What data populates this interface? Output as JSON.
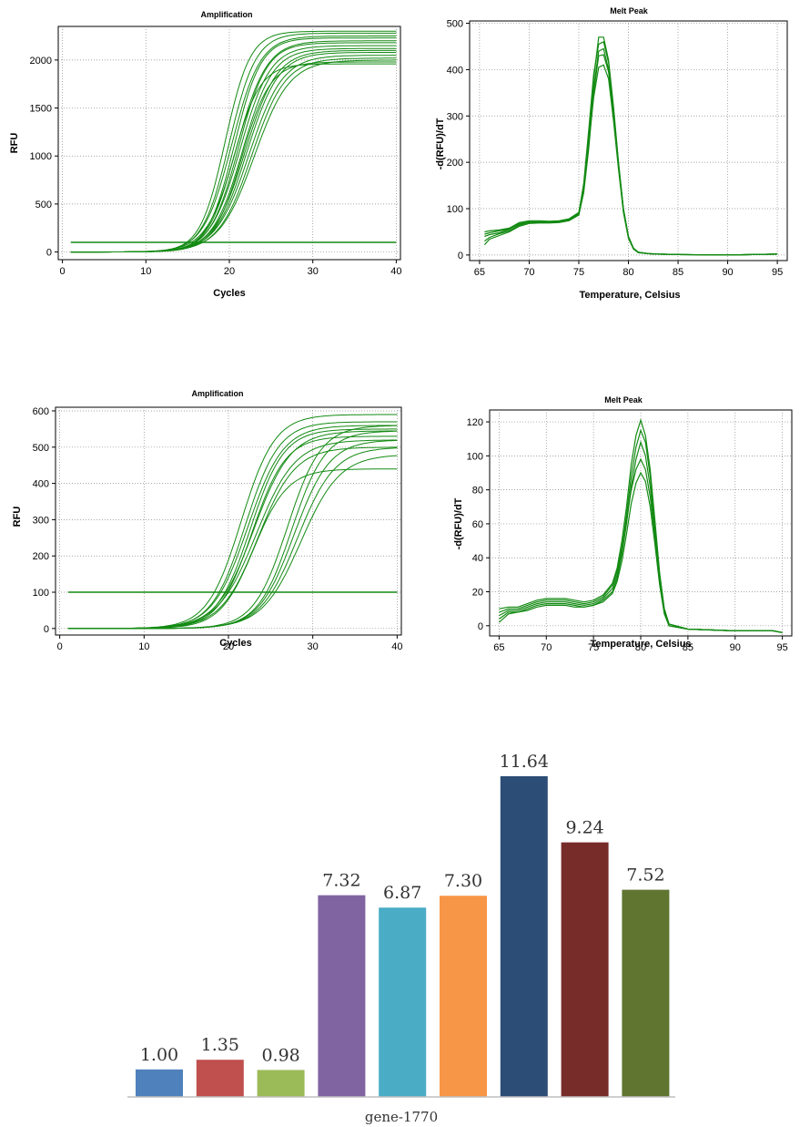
{
  "chart_data": [
    {
      "id": "amp1",
      "type": "line",
      "title": "Amplification",
      "xlabel": "Cycles",
      "ylabel": "RFU",
      "xlim": [
        -0.5,
        40.5
      ],
      "ylim": [
        -80,
        2350
      ],
      "xticks": [
        0,
        10,
        20,
        30,
        40
      ],
      "yticks": [
        0,
        500,
        1000,
        1500,
        2000
      ],
      "grid": true,
      "threshold": 100,
      "curve_model": "sigmoid",
      "x": [
        1,
        40
      ],
      "line_color": "#138a13",
      "series": [
        {
          "plateau": 1960,
          "midpoint": 20.5,
          "slope": 1.6
        },
        {
          "plateau": 2300,
          "midpoint": 19.5,
          "slope": 1.5
        },
        {
          "plateau": 2280,
          "midpoint": 20.0,
          "slope": 1.6
        },
        {
          "plateau": 2250,
          "midpoint": 20.3,
          "slope": 1.7
        },
        {
          "plateau": 2230,
          "midpoint": 20.6,
          "slope": 1.6
        },
        {
          "plateau": 2200,
          "midpoint": 20.9,
          "slope": 1.8
        },
        {
          "plateau": 2180,
          "midpoint": 21.1,
          "slope": 1.7
        },
        {
          "plateau": 2150,
          "midpoint": 21.3,
          "slope": 1.8
        },
        {
          "plateau": 2120,
          "midpoint": 21.6,
          "slope": 1.8
        },
        {
          "plateau": 2100,
          "midpoint": 21.9,
          "slope": 1.9
        },
        {
          "plateau": 2080,
          "midpoint": 22.1,
          "slope": 1.9
        },
        {
          "plateau": 2050,
          "midpoint": 22.4,
          "slope": 2.0
        },
        {
          "plateau": 2020,
          "midpoint": 22.7,
          "slope": 2.0
        },
        {
          "plateau": 2000,
          "midpoint": 23.0,
          "slope": 2.1
        },
        {
          "plateau": 1980,
          "midpoint": 21.5,
          "slope": 1.7
        }
      ]
    },
    {
      "id": "melt1",
      "type": "line",
      "title": "Melt Peak",
      "xlabel": "Temperature, Celsius",
      "ylabel": "-d(RFU)/dT",
      "xlim": [
        64,
        96
      ],
      "ylim": [
        -12,
        505
      ],
      "xticks": [
        65,
        70,
        75,
        80,
        85,
        90,
        95
      ],
      "yticks": [
        0,
        100,
        200,
        300,
        400,
        500
      ],
      "grid": true,
      "curve_model": "melt",
      "line_color": "#138a13",
      "x": [
        65.5,
        66,
        67,
        68,
        69,
        70,
        71,
        72,
        73,
        74,
        75,
        75.5,
        76,
        76.5,
        77,
        77.5,
        78,
        78.5,
        79,
        79.5,
        80,
        80.5,
        81,
        82,
        83,
        85,
        90,
        95
      ],
      "series": [
        {
          "values": [
            40,
            44,
            48,
            55,
            68,
            72,
            72,
            71,
            72,
            76,
            90,
            150,
            260,
            380,
            470,
            470,
            420,
            320,
            200,
            100,
            40,
            15,
            6,
            3,
            2,
            1,
            0,
            2
          ]
        },
        {
          "values": [
            30,
            38,
            46,
            52,
            64,
            70,
            70,
            70,
            71,
            75,
            88,
            140,
            250,
            360,
            440,
            445,
            400,
            300,
            190,
            95,
            38,
            14,
            6,
            3,
            2,
            1,
            0,
            2
          ]
        },
        {
          "values": [
            50,
            52,
            54,
            58,
            70,
            74,
            74,
            73,
            74,
            78,
            92,
            145,
            240,
            340,
            405,
            410,
            380,
            290,
            185,
            92,
            36,
            13,
            5,
            3,
            2,
            1,
            0,
            2
          ]
        },
        {
          "values": [
            22,
            34,
            42,
            50,
            62,
            68,
            69,
            69,
            70,
            74,
            86,
            135,
            230,
            350,
            430,
            432,
            395,
            305,
            195,
            98,
            39,
            14,
            6,
            3,
            2,
            1,
            0,
            2
          ]
        },
        {
          "values": [
            45,
            48,
            52,
            56,
            66,
            71,
            71,
            72,
            73,
            77,
            91,
            155,
            270,
            390,
            455,
            460,
            415,
            315,
            198,
            99,
            40,
            15,
            6,
            3,
            2,
            1,
            0,
            2
          ]
        }
      ]
    },
    {
      "id": "amp2",
      "type": "line",
      "title": "Amplification",
      "xlabel": "Cycles",
      "ylabel": "RFU",
      "xlim": [
        -0.5,
        40.5
      ],
      "ylim": [
        -18,
        610
      ],
      "xticks": [
        0,
        10,
        20,
        30,
        40
      ],
      "yticks": [
        0,
        100,
        200,
        300,
        400,
        500,
        600
      ],
      "grid": true,
      "threshold": 100,
      "curve_model": "sigmoid",
      "x": [
        1,
        40
      ],
      "line_color": "#138a13",
      "series": [
        {
          "plateau": 590,
          "midpoint": 21.5,
          "slope": 2.0
        },
        {
          "plateau": 570,
          "midpoint": 22.0,
          "slope": 2.0
        },
        {
          "plateau": 560,
          "midpoint": 22.3,
          "slope": 2.1
        },
        {
          "plateau": 550,
          "midpoint": 22.6,
          "slope": 2.0
        },
        {
          "plateau": 545,
          "midpoint": 23.0,
          "slope": 2.2
        },
        {
          "plateau": 530,
          "midpoint": 22.8,
          "slope": 2.0
        },
        {
          "plateau": 520,
          "midpoint": 23.3,
          "slope": 2.3
        },
        {
          "plateau": 500,
          "midpoint": 23.5,
          "slope": 2.2
        },
        {
          "plateau": 440,
          "midpoint": 23.0,
          "slope": 2.0
        },
        {
          "plateau": 560,
          "midpoint": 27.0,
          "slope": 2.0
        },
        {
          "plateau": 545,
          "midpoint": 27.5,
          "slope": 2.0
        },
        {
          "plateau": 520,
          "midpoint": 27.8,
          "slope": 2.1
        },
        {
          "plateau": 500,
          "midpoint": 28.2,
          "slope": 2.2
        },
        {
          "plateau": 480,
          "midpoint": 28.6,
          "slope": 2.3
        }
      ]
    },
    {
      "id": "melt2",
      "type": "line",
      "title": "Melt Peak",
      "xlabel": "Temperature, Celsius",
      "ylabel": "-d(RFU)/dT",
      "xlim": [
        64,
        96
      ],
      "ylim": [
        -6,
        127
      ],
      "xticks": [
        65,
        70,
        75,
        80,
        85,
        90,
        95
      ],
      "yticks": [
        0,
        20,
        40,
        60,
        80,
        100,
        120
      ],
      "grid": true,
      "curve_model": "melt",
      "line_color": "#138a13",
      "x": [
        65,
        66,
        67,
        68,
        69,
        70,
        71,
        72,
        73,
        74,
        75,
        76,
        77,
        77.5,
        78,
        78.5,
        79,
        79.5,
        80,
        80.5,
        81,
        81.5,
        82,
        82.5,
        83,
        85,
        90,
        94,
        95
      ],
      "series": [
        {
          "values": [
            6,
            9,
            9,
            11,
            13,
            14,
            14,
            14,
            13,
            12,
            13,
            16,
            22,
            30,
            45,
            65,
            88,
            105,
            115,
            108,
            88,
            60,
            30,
            10,
            1,
            -2,
            -3,
            -3,
            -4
          ]
        },
        {
          "values": [
            4,
            8,
            8,
            10,
            12,
            13,
            13,
            13,
            12,
            11,
            12,
            15,
            20,
            28,
            42,
            60,
            82,
            98,
            108,
            100,
            82,
            55,
            27,
            8,
            0,
            -2,
            -3,
            -3,
            -4
          ]
        },
        {
          "values": [
            8,
            10,
            10,
            12,
            14,
            15,
            15,
            15,
            14,
            13,
            14,
            17,
            24,
            32,
            46,
            62,
            80,
            92,
            98,
            92,
            76,
            52,
            26,
            8,
            0,
            -2,
            -3,
            -3,
            -4
          ]
        },
        {
          "values": [
            2,
            7,
            8,
            9,
            11,
            12,
            12,
            12,
            11,
            11,
            12,
            14,
            19,
            26,
            38,
            54,
            72,
            84,
            90,
            85,
            70,
            48,
            24,
            7,
            0,
            -2,
            -3,
            -3,
            -4
          ]
        },
        {
          "values": [
            10,
            11,
            11,
            13,
            15,
            16,
            16,
            16,
            15,
            14,
            15,
            18,
            25,
            34,
            50,
            70,
            95,
            112,
            121,
            112,
            92,
            62,
            31,
            10,
            1,
            -2,
            -3,
            -3,
            -4
          ]
        }
      ]
    },
    {
      "id": "bars",
      "type": "bar",
      "xlabel": "gene-1770",
      "ylim": [
        0,
        11.64
      ],
      "values": [
        1.0,
        1.35,
        0.98,
        7.32,
        6.87,
        7.3,
        11.64,
        9.24,
        7.52
      ],
      "labels": [
        "1.00",
        "1.35",
        "0.98",
        "7.32",
        "6.87",
        "7.30",
        "11.64",
        "9.24",
        "7.52"
      ],
      "colors": [
        "#4f81bd",
        "#c0504d",
        "#9bbb59",
        "#8064a2",
        "#4bacc6",
        "#f79646",
        "#2c4d75",
        "#772c2a",
        "#5f7530"
      ],
      "grid": false
    }
  ]
}
